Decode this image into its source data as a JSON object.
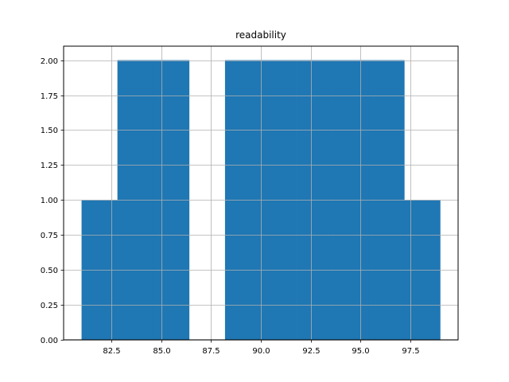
{
  "chart_data": {
    "type": "bar",
    "title": "readability",
    "xlabel": "",
    "ylabel": "",
    "grid": true,
    "bar_color": "#1f77b4",
    "grid_color": "#b0b0b0",
    "xlim": [
      80.1,
      99.9
    ],
    "ylim": [
      0,
      2.1
    ],
    "bins": [
      {
        "x0": 81.0,
        "x1": 82.8,
        "count": 1
      },
      {
        "x0": 82.8,
        "x1": 84.6,
        "count": 2
      },
      {
        "x0": 84.6,
        "x1": 86.4,
        "count": 2
      },
      {
        "x0": 86.4,
        "x1": 88.2,
        "count": 0
      },
      {
        "x0": 88.2,
        "x1": 90.0,
        "count": 2
      },
      {
        "x0": 90.0,
        "x1": 91.8,
        "count": 2
      },
      {
        "x0": 91.8,
        "x1": 93.6,
        "count": 2
      },
      {
        "x0": 93.6,
        "x1": 95.4,
        "count": 2
      },
      {
        "x0": 95.4,
        "x1": 97.2,
        "count": 2
      },
      {
        "x0": 97.2,
        "x1": 99.0,
        "count": 1
      }
    ],
    "x_ticks": [
      {
        "value": 82.5,
        "label": "82.5"
      },
      {
        "value": 85.0,
        "label": "85.0"
      },
      {
        "value": 87.5,
        "label": "87.5"
      },
      {
        "value": 90.0,
        "label": "90.0"
      },
      {
        "value": 92.5,
        "label": "92.5"
      },
      {
        "value": 95.0,
        "label": "95.0"
      },
      {
        "value": 97.5,
        "label": "97.5"
      }
    ],
    "y_ticks": [
      {
        "value": 0.0,
        "label": "0.00"
      },
      {
        "value": 0.25,
        "label": "0.25"
      },
      {
        "value": 0.5,
        "label": "0.50"
      },
      {
        "value": 0.75,
        "label": "0.75"
      },
      {
        "value": 1.0,
        "label": "1.00"
      },
      {
        "value": 1.25,
        "label": "1.25"
      },
      {
        "value": 1.5,
        "label": "1.50"
      },
      {
        "value": 1.75,
        "label": "1.75"
      },
      {
        "value": 2.0,
        "label": "2.00"
      }
    ]
  }
}
